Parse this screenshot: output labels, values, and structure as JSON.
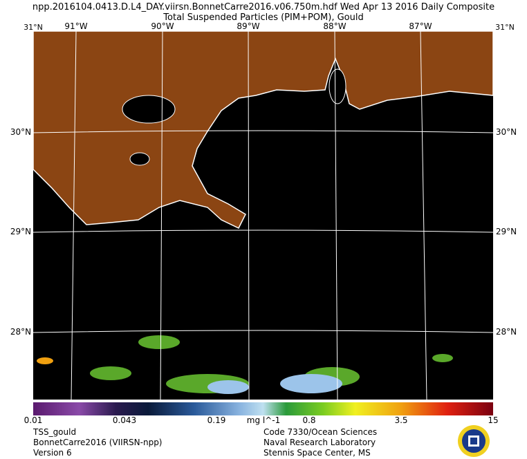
{
  "header": {
    "line1": "npp.2016104.0413.D.L4_DAY.viirsn.BonnetCarre2016.v06.750m.hdf    Wed Apr 13 2016 Daily Composite",
    "line2": "Total Suspended Particles (PIM+POM), Gould"
  },
  "map": {
    "lon_labels": [
      "91°W",
      "90°W",
      "89°W",
      "88°W",
      "87°W"
    ],
    "lat_labels": [
      "30°N",
      "29°N",
      "28°N"
    ],
    "corner_label": "31°N"
  },
  "colorbar": {
    "labels": [
      "0.01",
      "0.043",
      "0.19",
      "0.8",
      "3.5",
      "15"
    ],
    "units": "mg l^-1"
  },
  "footer": {
    "left": [
      "TSS_gould",
      "BonnetCarre2016 (VIIRSN-npp)",
      "Version 6"
    ],
    "right": [
      "Code 7330/Ocean Sciences",
      "Naval Research Laboratory",
      "Stennis Space Center, MS"
    ]
  }
}
